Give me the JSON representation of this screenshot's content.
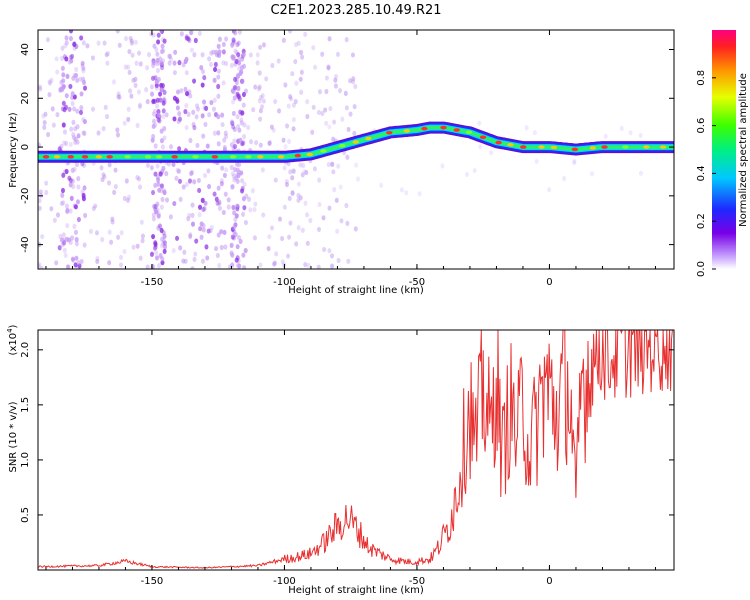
{
  "title": "C2E1.2023.285.10.49.R21",
  "colors": {
    "snr_line": "#e83030",
    "ridge_outline": "#5000c8",
    "axis": "#000000"
  },
  "chart_data": [
    {
      "type": "heatmap",
      "title": "C2E1.2023.285.10.49.R21",
      "xlabel": "Height of straight line (km)",
      "ylabel": "Frequency (Hz)",
      "xlim": [
        -193,
        47
      ],
      "ylim": [
        -50,
        48
      ],
      "xticks": [
        -150,
        -100,
        -50,
        0
      ],
      "yticks": [
        -40,
        -20,
        0,
        20,
        40
      ],
      "colorbar": {
        "label": "Normalized spectral amplitude",
        "range": [
          0,
          1
        ],
        "ticks": [
          "0.0",
          "0.2",
          "0.4",
          "0.6",
          "0.8"
        ],
        "colormap": "purple-blue-cyan-green-yellow-red"
      },
      "ridge": {
        "x": [
          -193,
          -150,
          -120,
          -100,
          -90,
          -80,
          -70,
          -60,
          -50,
          -45,
          -40,
          -35,
          -30,
          -25,
          -20,
          -10,
          0,
          10,
          20,
          30,
          47
        ],
        "y": [
          -4,
          -4,
          -4,
          -4,
          -3,
          0,
          3,
          6,
          7,
          8,
          8,
          7,
          6,
          4,
          2,
          0,
          0,
          -1,
          0,
          0,
          0
        ]
      },
      "noise_bands_x": [
        [
          -185,
          -175
        ],
        [
          -150,
          -145
        ],
        [
          -142,
          -122
        ],
        [
          -120,
          -115
        ]
      ]
    },
    {
      "type": "line",
      "xlabel": "Height of straight line (km)",
      "ylabel": "SNR (10 * v/v)",
      "yscale_label": "(x10",
      "yscale_exponent": "4",
      "xlim": [
        -193,
        47
      ],
      "ylim": [
        0,
        21800
      ],
      "xticks": [
        -150,
        -100,
        -50,
        0
      ],
      "yticks_labels": [
        "0.5",
        "1.0",
        "1.5",
        "2.0"
      ],
      "yticks_values": [
        5000,
        10000,
        15000,
        20000
      ],
      "series": [
        {
          "x": [
            -193,
            -170,
            -160,
            -150,
            -130,
            -110,
            -100,
            -95,
            -90,
            -85,
            -80,
            -76,
            -72,
            -68,
            -60,
            -52,
            -45,
            -42,
            -38,
            -35,
            -32,
            -30,
            -28,
            -25,
            -22,
            -20,
            -18,
            -15,
            -12,
            -10,
            -8,
            -5,
            -2,
            0,
            3,
            6,
            8,
            10,
            12,
            15,
            18,
            20,
            22,
            25,
            28,
            32,
            36,
            40,
            47
          ],
          "y": [
            300,
            400,
            800,
            300,
            200,
            400,
            1000,
            1200,
            1500,
            2500,
            4000,
            4800,
            3500,
            2000,
            1000,
            700,
            1000,
            2000,
            4000,
            7000,
            12000,
            15000,
            11000,
            17000,
            12000,
            19000,
            10000,
            15000,
            12000,
            16000,
            11000,
            13000,
            17000,
            16000,
            14000,
            18000,
            15000,
            6000,
            17000,
            18000,
            20000,
            21000,
            19000,
            20000,
            20500,
            20800,
            21000,
            21200,
            21300
          ]
        }
      ]
    }
  ]
}
